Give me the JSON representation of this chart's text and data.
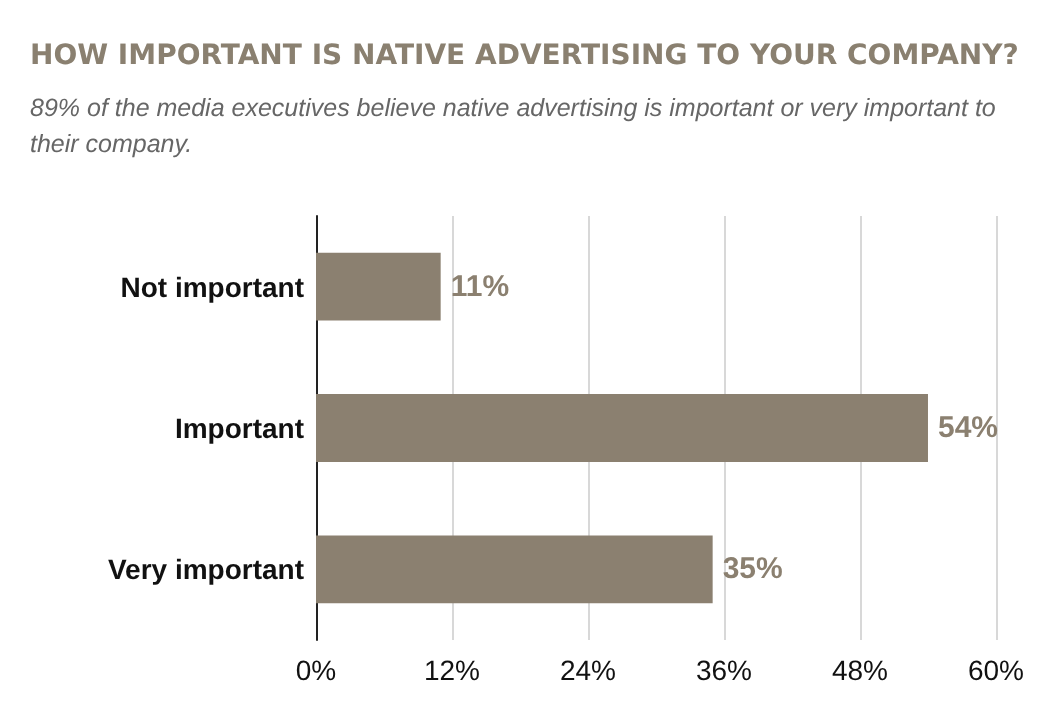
{
  "chart_data": {
    "type": "bar",
    "orientation": "horizontal",
    "title": "HOW IMPORTANT IS NATIVE ADVERTISING TO YOUR COMPANY?",
    "subtitle": "89% of the media executives believe native advertising is important or very important to their company.",
    "categories": [
      "Not important",
      "Important",
      "Very important"
    ],
    "values": [
      11,
      54,
      35
    ],
    "value_labels": [
      "11%",
      "54%",
      "35%"
    ],
    "color": "#8b8070",
    "xlim": [
      0,
      60
    ],
    "xticks": [
      {
        "value": 0,
        "label": "0%"
      },
      {
        "value": 12,
        "label": "12%"
      },
      {
        "value": 24,
        "label": "24%"
      },
      {
        "value": 36,
        "label": "36%"
      },
      {
        "value": 48,
        "label": "48%"
      },
      {
        "value": 60,
        "label": "60%"
      }
    ],
    "grid": "x"
  }
}
